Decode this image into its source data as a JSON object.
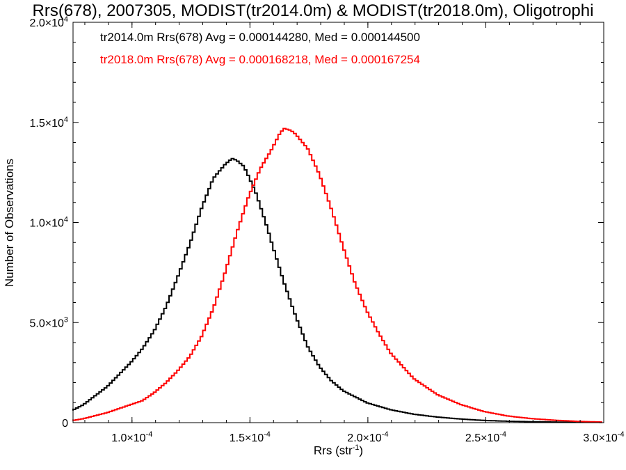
{
  "chart_data": {
    "type": "line",
    "title": "Rrs(678), 2007305, MODIST(tr2014.0m) & MODIST(tr2018.0m), Oligotrophi",
    "xlabel": "Rrs (str",
    "xlabel_sup": "-1",
    "xlabel_close": ")",
    "ylabel": "Number of Observations",
    "xlim": [
      7.5e-05,
      0.0003
    ],
    "ylim": [
      0,
      20000
    ],
    "x_ticks": [
      {
        "value": 0.0001,
        "mant": "1.0",
        "exp": "-4"
      },
      {
        "value": 0.00015,
        "mant": "1.5",
        "exp": "-4"
      },
      {
        "value": 0.0002,
        "mant": "2.0",
        "exp": "-4"
      },
      {
        "value": 0.00025,
        "mant": "2.5",
        "exp": "-4"
      },
      {
        "value": 0.0003,
        "mant": "3.0",
        "exp": "-4"
      }
    ],
    "y_ticks": [
      {
        "value": 0,
        "mant": "0",
        "exp": ""
      },
      {
        "value": 5000,
        "mant": "5.0",
        "exp": "3"
      },
      {
        "value": 10000,
        "mant": "1.0",
        "exp": "4"
      },
      {
        "value": 15000,
        "mant": "1.5",
        "exp": "4"
      },
      {
        "value": 20000,
        "mant": "2.0",
        "exp": "4"
      }
    ],
    "grid": false,
    "series": [
      {
        "name": "tr2014.0m",
        "color": "#000000",
        "stats_label": "tr2014.0m Rrs(678) Avg = 0.000144280, Med = 0.000144500",
        "points": [
          [
            7.5e-05,
            600
          ],
          [
            8e-05,
            900
          ],
          [
            8.5e-05,
            1350
          ],
          [
            9e-05,
            1800
          ],
          [
            9.5e-05,
            2400
          ],
          [
            0.0001,
            3000
          ],
          [
            0.000105,
            3700
          ],
          [
            0.00011,
            4600
          ],
          [
            0.000115,
            5800
          ],
          [
            0.00012,
            7300
          ],
          [
            0.000125,
            8900
          ],
          [
            0.00013,
            10700
          ],
          [
            0.000135,
            12200
          ],
          [
            0.00014,
            12900
          ],
          [
            0.000143,
            13200
          ],
          [
            0.000145,
            13100
          ],
          [
            0.000148,
            12800
          ],
          [
            0.00015,
            12300
          ],
          [
            0.000153,
            11500
          ],
          [
            0.000155,
            10800
          ],
          [
            0.000158,
            9700
          ],
          [
            0.00016,
            8900
          ],
          [
            0.000165,
            7000
          ],
          [
            0.00017,
            5300
          ],
          [
            0.000175,
            3800
          ],
          [
            0.00018,
            2800
          ],
          [
            0.000185,
            2100
          ],
          [
            0.00019,
            1600
          ],
          [
            0.0002,
            1000
          ],
          [
            0.00021,
            650
          ],
          [
            0.00022,
            420
          ],
          [
            0.00023,
            280
          ],
          [
            0.00024,
            180
          ],
          [
            0.00025,
            110
          ],
          [
            0.00026,
            70
          ],
          [
            0.00027,
            45
          ],
          [
            0.00028,
            30
          ],
          [
            0.00029,
            20
          ],
          [
            0.0003,
            15
          ]
        ]
      },
      {
        "name": "tr2018.0m",
        "color": "#ff0000",
        "stats_label": "tr2018.0m Rrs(678) Avg = 0.000168218, Med = 0.000167254",
        "points": [
          [
            7.5e-05,
            100
          ],
          [
            8e-05,
            200
          ],
          [
            8.5e-05,
            350
          ],
          [
            9e-05,
            500
          ],
          [
            9.5e-05,
            700
          ],
          [
            0.0001,
            900
          ],
          [
            0.000105,
            1100
          ],
          [
            0.00011,
            1500
          ],
          [
            0.000115,
            2000
          ],
          [
            0.00012,
            2600
          ],
          [
            0.000125,
            3300
          ],
          [
            0.00013,
            4300
          ],
          [
            0.000135,
            5700
          ],
          [
            0.00014,
            7500
          ],
          [
            0.000145,
            9500
          ],
          [
            0.00015,
            11300
          ],
          [
            0.000155,
            12700
          ],
          [
            0.00016,
            13700
          ],
          [
            0.000163,
            14400
          ],
          [
            0.000165,
            14700
          ],
          [
            0.000168,
            14600
          ],
          [
            0.00017,
            14400
          ],
          [
            0.000175,
            13700
          ],
          [
            0.00018,
            12400
          ],
          [
            0.000185,
            10700
          ],
          [
            0.00019,
            8800
          ],
          [
            0.000195,
            7000
          ],
          [
            0.0002,
            5600
          ],
          [
            0.000205,
            4500
          ],
          [
            0.00021,
            3500
          ],
          [
            0.00022,
            2200
          ],
          [
            0.00023,
            1400
          ],
          [
            0.00024,
            900
          ],
          [
            0.00025,
            550
          ],
          [
            0.00026,
            330
          ],
          [
            0.00027,
            200
          ],
          [
            0.00028,
            120
          ],
          [
            0.00029,
            60
          ],
          [
            0.0003,
            30
          ]
        ]
      }
    ]
  }
}
